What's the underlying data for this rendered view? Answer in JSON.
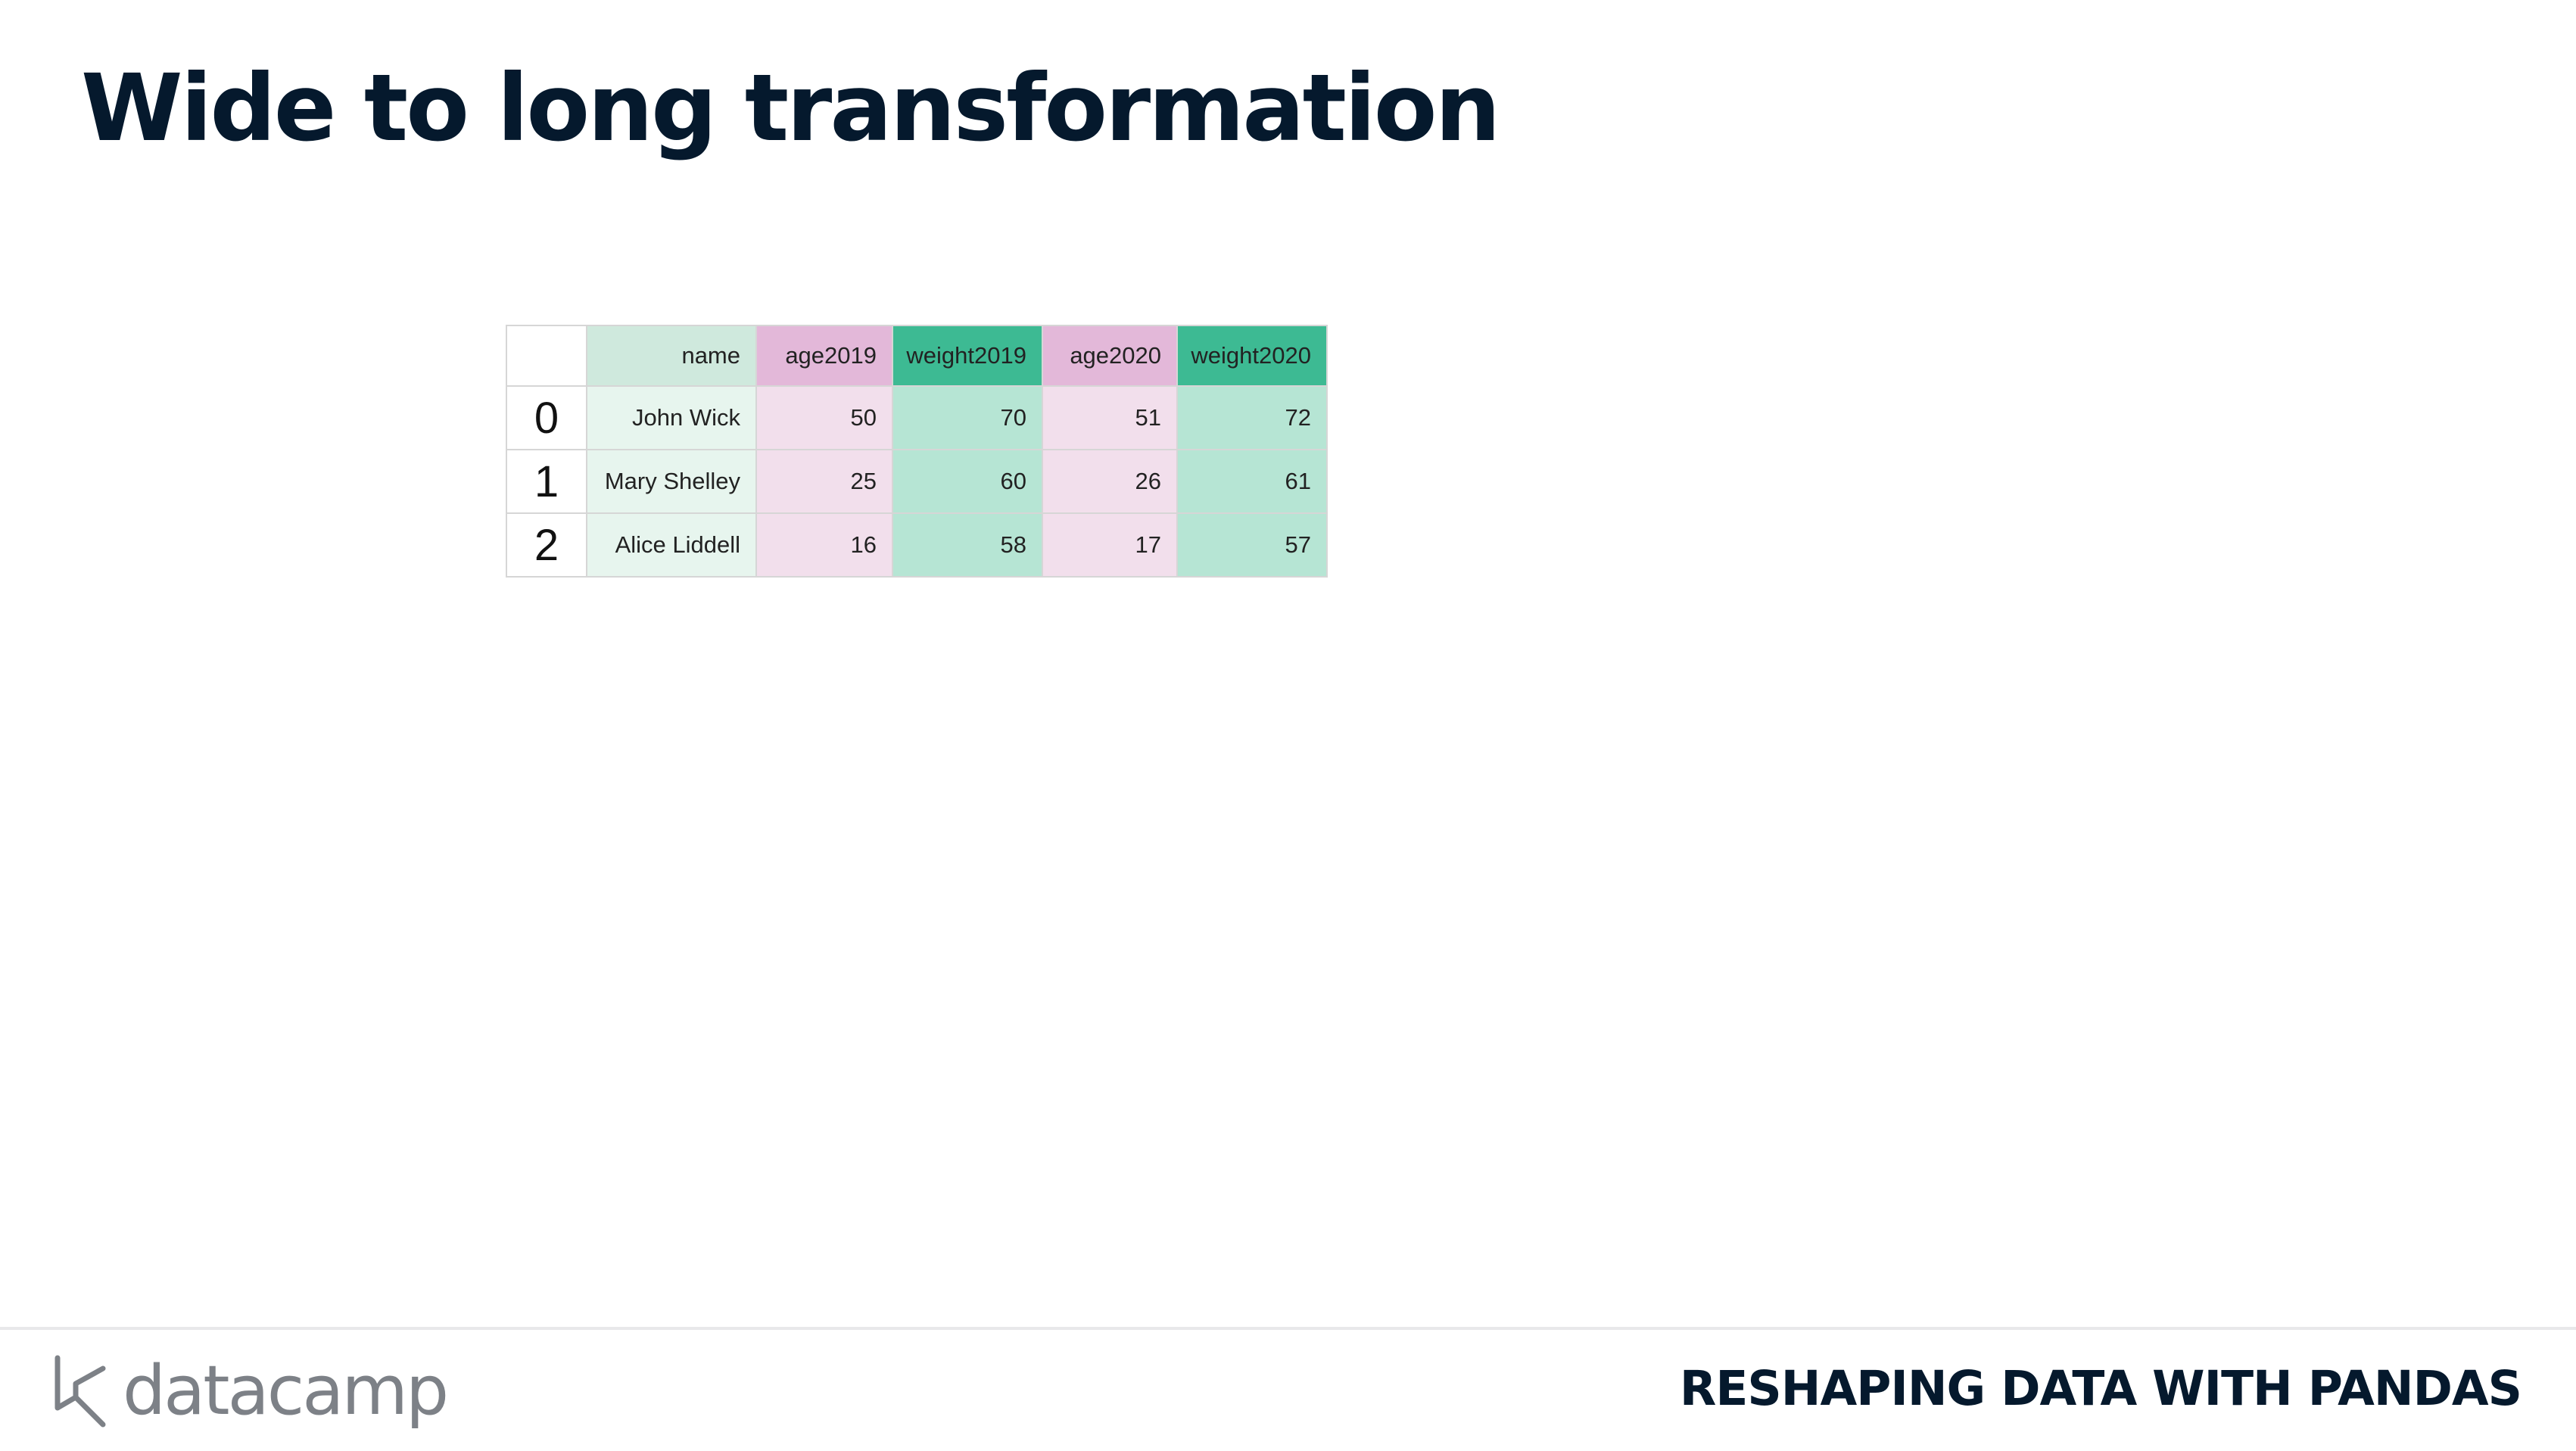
{
  "slide": {
    "title": "Wide to long transformation"
  },
  "table": {
    "columns": [
      "",
      "name",
      "age2019",
      "weight2019",
      "age2020",
      "weight2020"
    ],
    "rows": [
      {
        "index": "0",
        "name": "John Wick",
        "age2019": "50",
        "weight2019": "70",
        "age2020": "51",
        "weight2020": "72"
      },
      {
        "index": "1",
        "name": "Mary Shelley",
        "age2019": "25",
        "weight2019": "60",
        "age2020": "26",
        "weight2020": "61"
      },
      {
        "index": "2",
        "name": "Alice Liddell",
        "age2019": "16",
        "weight2019": "58",
        "age2020": "17",
        "weight2020": "57"
      }
    ],
    "colors": {
      "name_header": "#cfe9dd",
      "name_cell": "#e7f5ee",
      "age_header": "#e3b8d9",
      "age_cell": "#f2dfec",
      "weight_header": "#3dba93",
      "weight_cell": "#b6e5d4"
    }
  },
  "footer": {
    "logo_icon": "datacamp-logo-icon",
    "logo_text": "datacamp",
    "course": "RESHAPING DATA WITH PANDAS"
  }
}
